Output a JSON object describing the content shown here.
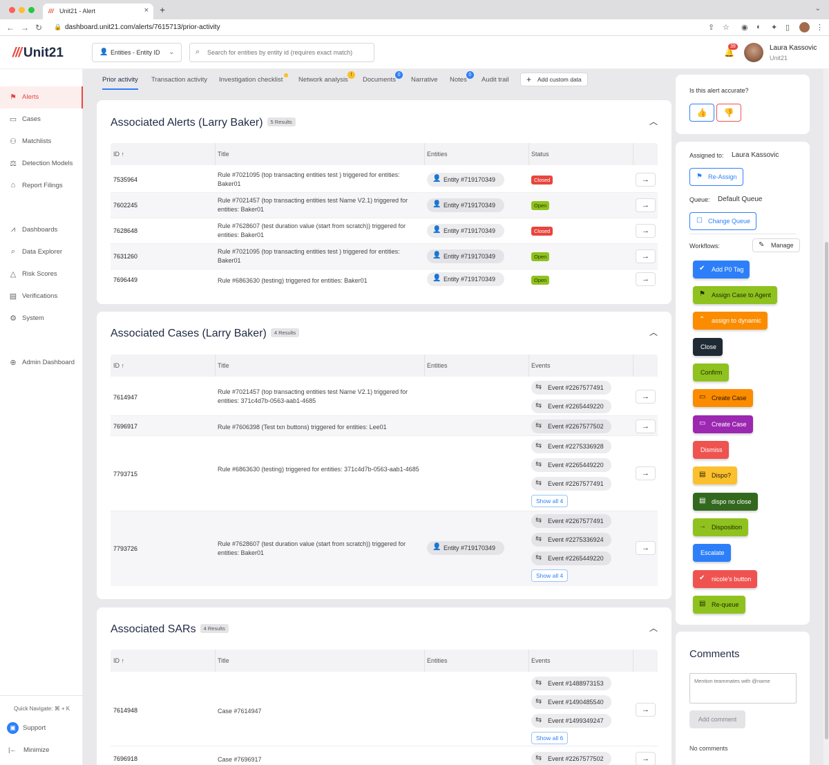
{
  "browser": {
    "tab_title": "Unit21 - Alert",
    "url": "dashboard.unit21.com/alerts/7615713/prior-activity"
  },
  "header": {
    "logo_text": "Unit21",
    "entity_select": "Entities - Entity ID",
    "search_placeholder": "Search for entities by entity id (requires exact match)",
    "notification_count": "39",
    "user_name": "Laura Kassovic",
    "user_org": "Unit21"
  },
  "sidebar": {
    "items": [
      {
        "label": "Alerts",
        "icon": "flag-icon",
        "active": true
      },
      {
        "label": "Cases",
        "icon": "briefcase-icon"
      },
      {
        "label": "Matchlists",
        "icon": "users-icon"
      },
      {
        "label": "Detection Models",
        "icon": "scale-icon"
      },
      {
        "label": "Report Filings",
        "icon": "bank-icon"
      },
      {
        "label": "Dashboards",
        "icon": "chart-icon"
      },
      {
        "label": "Data Explorer",
        "icon": "data-search-icon"
      },
      {
        "label": "Risk Scores",
        "icon": "warning-icon"
      },
      {
        "label": "Verifications",
        "icon": "id-card-icon"
      },
      {
        "label": "System",
        "icon": "gear-icon"
      },
      {
        "label": "Admin Dashboard",
        "icon": "globe-icon"
      }
    ],
    "quick_navigate": "Quick Navigate: ⌘ + K",
    "support": "Support",
    "minimize": "Minimize"
  },
  "tabs": [
    {
      "label": "Prior activity",
      "active": true
    },
    {
      "label": "Transaction activity"
    },
    {
      "label": "Investigation checklist",
      "badge": ""
    },
    {
      "label": "Network analysis",
      "badge": "!"
    },
    {
      "label": "Documents",
      "badge": "0"
    },
    {
      "label": "Narrative"
    },
    {
      "label": "Notes",
      "badge": "0"
    },
    {
      "label": "Audit trail"
    }
  ],
  "add_custom_data": "Add custom data",
  "columns": {
    "id": "ID",
    "title": "Title",
    "entities": "Entities",
    "status": "Status",
    "events": "Events"
  },
  "alerts": {
    "title": "Associated Alerts (Larry Baker)",
    "count": "5 Results",
    "rows": [
      {
        "id": "7535964",
        "title": "Rule #7021095 (top transacting entities test ) triggered for entities: Baker01",
        "entity": "Entity #719170349",
        "status": "Closed"
      },
      {
        "id": "7602245",
        "title": "Rule #7021457 (top transacting entities test Name V2.1) triggered for entities: Baker01",
        "entity": "Entity #719170349",
        "status": "Open"
      },
      {
        "id": "7628648",
        "title": "Rule #7628607 (test duration value (start from scratch)) triggered for entities: Baker01",
        "entity": "Entity #719170349",
        "status": "Closed"
      },
      {
        "id": "7631260",
        "title": "Rule #7021095 (top transacting entities test ) triggered for entities: Baker01",
        "entity": "Entity #719170349",
        "status": "Open"
      },
      {
        "id": "7696449",
        "title": "Rule #6863630 (testing) triggered for entities: Baker01",
        "entity": "Entity #719170349",
        "status": "Open"
      }
    ]
  },
  "cases": {
    "title": "Associated Cases (Larry Baker)",
    "count": "4 Results",
    "rows": [
      {
        "id": "7614947",
        "title": "Rule #7021457 (top transacting entities test Name V2.1) triggered for entities: 371c4d7b-0563-aab1-4685",
        "events": [
          "Event #2267577491",
          "Event #2265449220"
        ]
      },
      {
        "id": "7696917",
        "title": "Rule #7606398 (Test txn buttons) triggered for entities: Lee01",
        "events": [
          "Event #2267577502"
        ]
      },
      {
        "id": "7793715",
        "title": "Rule #6863630 (testing) triggered for entities: 371c4d7b-0563-aab1-4685",
        "events": [
          "Event #2275336928",
          "Event #2265449220",
          "Event #2267577491"
        ],
        "show_all": "Show all 4"
      },
      {
        "id": "7793726",
        "title": "Rule #7628607 (test duration value (start from scratch)) triggered for entities: Baker01",
        "entity": "Entity #719170349",
        "events": [
          "Event #2267577491",
          "Event #2275336924",
          "Event #2265449220"
        ],
        "show_all": "Show all 4"
      }
    ]
  },
  "sars": {
    "title": "Associated SARs",
    "count": "4 Results",
    "rows": [
      {
        "id": "7614948",
        "title": "Case #7614947",
        "events": [
          "Event #1488973153",
          "Event #1490485540",
          "Event #1499349247"
        ],
        "show_all": "Show all 6"
      },
      {
        "id": "7696918",
        "title": "Case #7696917",
        "events": [
          "Event #2267577502"
        ]
      }
    ]
  },
  "accuracy": {
    "question": "Is this alert accurate?"
  },
  "assignment": {
    "assigned_label": "Assigned to:",
    "assigned_value": "Laura Kassovic",
    "reassign": "Re-Assign",
    "queue_label": "Queue:",
    "queue_value": "Default Queue",
    "change_queue": "Change Queue",
    "workflows_label": "Workflows:",
    "manage": "Manage"
  },
  "workflows": [
    {
      "label": "Add P0 Tag",
      "color": "#2d7ff9",
      "icon": "check-circle-icon"
    },
    {
      "label": "Assign Case to Agent",
      "color": "#8fc21e",
      "icon": "assign-icon",
      "dark_text": true
    },
    {
      "label": "assign to dynamic",
      "color": "#fb8c00",
      "icon": "double-chevron-up-icon"
    },
    {
      "label": "Close",
      "color": "#1f2a35"
    },
    {
      "label": "Confirm",
      "color": "#8fc21e",
      "dark_text": true
    },
    {
      "label": "Create Case",
      "color": "#fb8c00",
      "icon": "briefcase-icon",
      "dark_text": true
    },
    {
      "label": "Create Case",
      "color": "#9c27b0",
      "icon": "briefcase-icon"
    },
    {
      "label": "Dismiss",
      "color": "#ef5350"
    },
    {
      "label": "Dispo?",
      "color": "#fbc02d",
      "icon": "document-icon",
      "dark_text": true
    },
    {
      "label": "dispo no close",
      "color": "#33691e",
      "icon": "document-icon"
    },
    {
      "label": "Disposition",
      "color": "#8fc21e",
      "icon": "arrow-right-icon",
      "dark_text": true
    },
    {
      "label": "Escalate",
      "color": "#2d7ff9"
    },
    {
      "label": "nicole's button",
      "color": "#ef5350",
      "icon": "check-circle-icon"
    },
    {
      "label": "Re-queue",
      "color": "#8fc21e",
      "icon": "document-icon",
      "dark_text": true
    }
  ],
  "comments": {
    "title": "Comments",
    "placeholder": "Mention teammates with @name",
    "add_button": "Add comment",
    "empty": "No comments"
  }
}
